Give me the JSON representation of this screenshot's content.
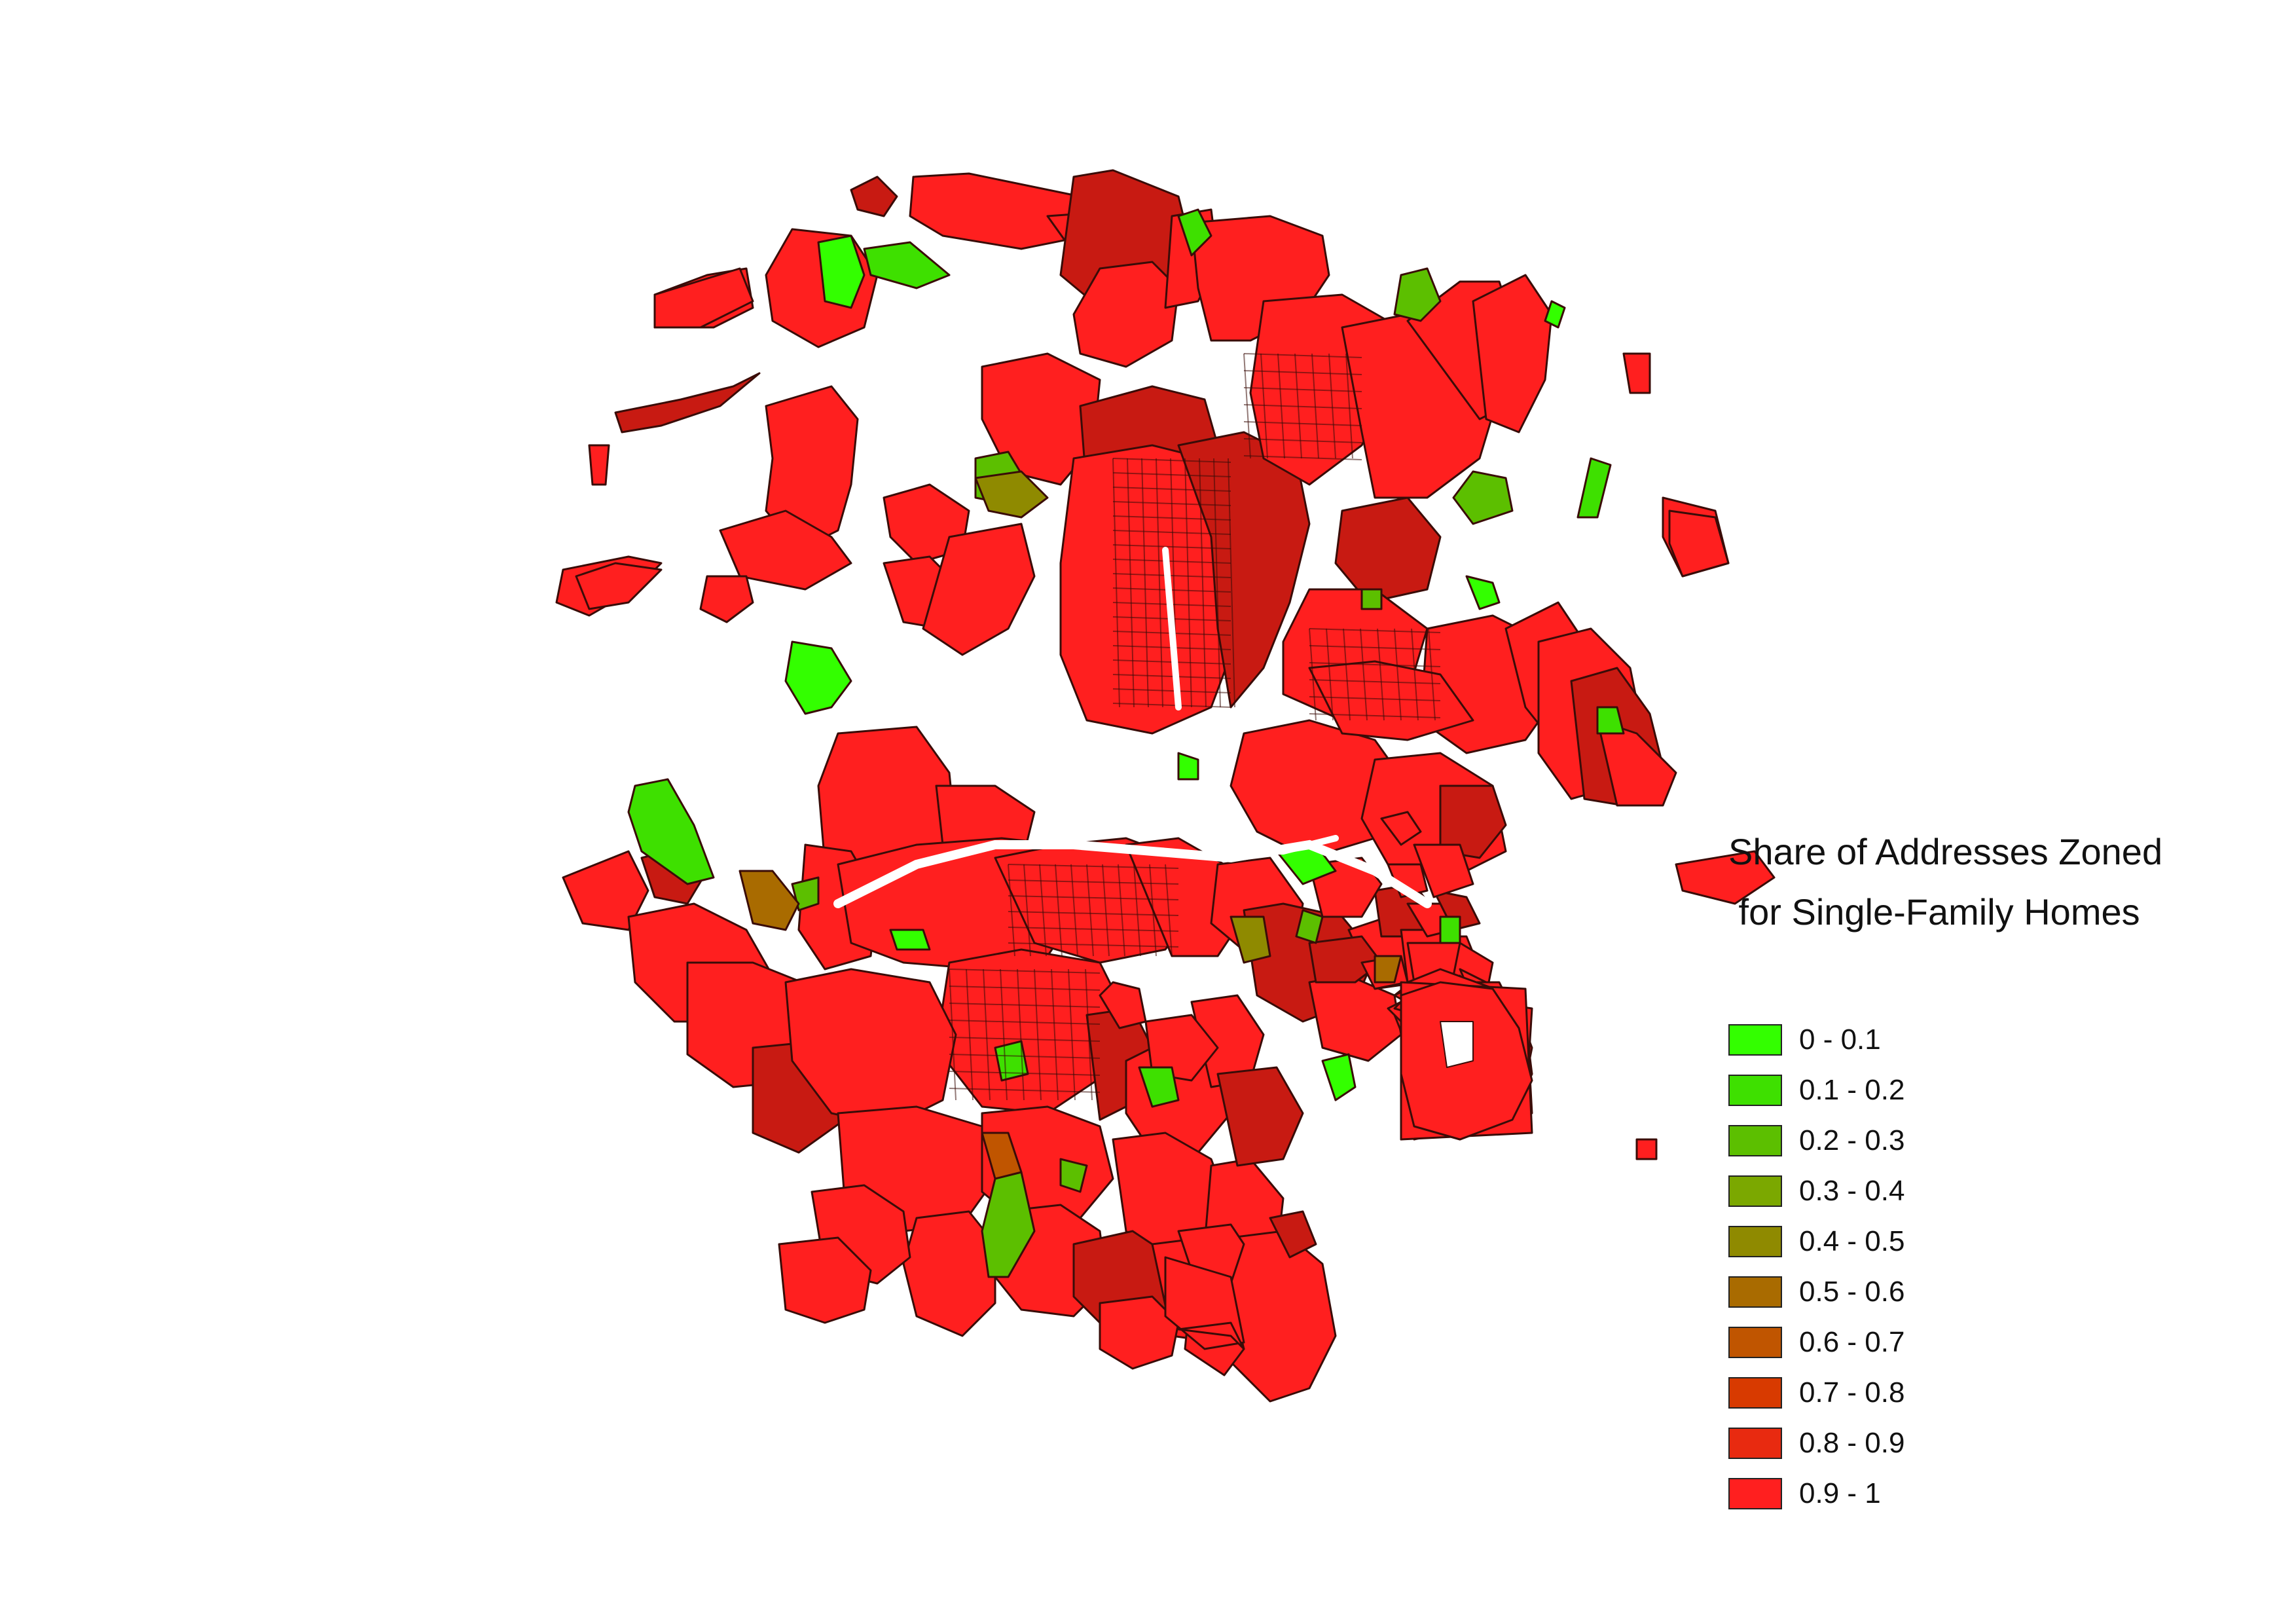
{
  "legend": {
    "title_line1": "Share of Addresses Zoned",
    "title_line2": " for Single-Family Homes",
    "items": [
      {
        "label": "0 - 0.1",
        "color": "#33ff00"
      },
      {
        "label": "0.1 - 0.2",
        "color": "#3ee000"
      },
      {
        "label": "0.2 - 0.3",
        "color": "#5cbf00"
      },
      {
        "label": "0.3 - 0.4",
        "color": "#7ba800"
      },
      {
        "label": "0.4 - 0.5",
        "color": "#8f8a00"
      },
      {
        "label": "0.5 - 0.6",
        "color": "#a96b00"
      },
      {
        "label": "0.6 - 0.7",
        "color": "#c05500"
      },
      {
        "label": "0.7 - 0.8",
        "color": "#d83a00"
      },
      {
        "label": "0.8 - 0.9",
        "color": "#e82a10"
      },
      {
        "label": "0.9 - 1",
        "color": "#ff1f1f"
      }
    ]
  },
  "map": {
    "region_fill": "#ff1f1f",
    "dense_fill": "#c81a12",
    "boundary_color": "#3a0c08"
  }
}
